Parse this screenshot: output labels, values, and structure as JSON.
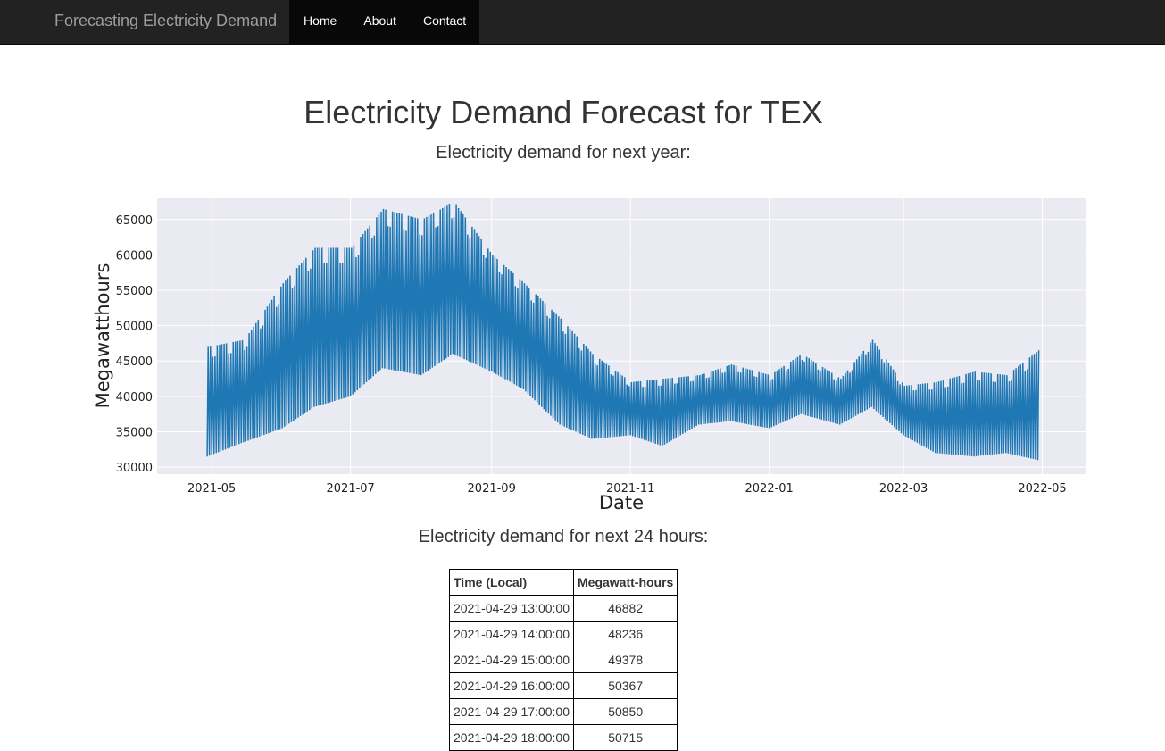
{
  "navbar": {
    "brand": "Forecasting Electricity Demand",
    "items": [
      {
        "label": "Home"
      },
      {
        "label": "About"
      },
      {
        "label": "Contact"
      }
    ]
  },
  "page": {
    "title": "Electricity Demand Forecast for TEX",
    "subtitle_year": "Electricity demand for next year:",
    "subtitle_day": "Electricity demand for next 24 hours:"
  },
  "chart_data": {
    "type": "line",
    "xlabel": "Date",
    "ylabel": "Megawatthours",
    "xlim": [
      "2021-04-07",
      "2022-05-20"
    ],
    "ylim": [
      29000,
      68000
    ],
    "x_ticks": [
      "2021-05",
      "2021-07",
      "2021-09",
      "2021-11",
      "2022-01",
      "2022-03",
      "2022-05"
    ],
    "y_ticks": [
      30000,
      35000,
      40000,
      45000,
      50000,
      55000,
      60000,
      65000
    ],
    "grid": true,
    "line_color": "#1f77b4",
    "background": "#eaeaf2",
    "series": [
      {
        "x_range": [
          "2021-04-29",
          "2022-04-29"
        ],
        "daily_peak": [
          [
            "2021-04-29",
            47000
          ],
          [
            "2021-05-15",
            48000
          ],
          [
            "2021-06-01",
            56000
          ],
          [
            "2021-06-15",
            61000
          ],
          [
            "2021-07-01",
            61000
          ],
          [
            "2021-07-15",
            66500
          ],
          [
            "2021-08-01",
            65000
          ],
          [
            "2021-08-15",
            67500
          ],
          [
            "2021-09-01",
            60000
          ],
          [
            "2021-09-15",
            56000
          ],
          [
            "2021-10-01",
            51000
          ],
          [
            "2021-10-15",
            46000
          ],
          [
            "2021-11-01",
            42000
          ],
          [
            "2021-11-15",
            42500
          ],
          [
            "2021-12-01",
            43000
          ],
          [
            "2021-12-15",
            44500
          ],
          [
            "2022-01-01",
            43000
          ],
          [
            "2022-01-15",
            46000
          ],
          [
            "2022-02-01",
            42500
          ],
          [
            "2022-02-15",
            48000
          ],
          [
            "2022-03-01",
            41500
          ],
          [
            "2022-03-15",
            42000
          ],
          [
            "2022-04-01",
            43500
          ],
          [
            "2022-04-15",
            43000
          ],
          [
            "2022-04-29",
            46500
          ]
        ],
        "daily_trough": [
          [
            "2021-04-29",
            31500
          ],
          [
            "2021-05-15",
            33500
          ],
          [
            "2021-06-01",
            35500
          ],
          [
            "2021-06-15",
            38500
          ],
          [
            "2021-07-01",
            40000
          ],
          [
            "2021-07-15",
            44000
          ],
          [
            "2021-08-01",
            43000
          ],
          [
            "2021-08-15",
            46000
          ],
          [
            "2021-09-01",
            43500
          ],
          [
            "2021-09-15",
            41000
          ],
          [
            "2021-10-01",
            36000
          ],
          [
            "2021-10-15",
            34000
          ],
          [
            "2021-11-01",
            34500
          ],
          [
            "2021-11-15",
            33000
          ],
          [
            "2021-12-01",
            36000
          ],
          [
            "2021-12-15",
            36500
          ],
          [
            "2022-01-01",
            35500
          ],
          [
            "2022-01-15",
            37500
          ],
          [
            "2022-02-01",
            36000
          ],
          [
            "2022-02-15",
            38500
          ],
          [
            "2022-03-01",
            34500
          ],
          [
            "2022-03-15",
            32000
          ],
          [
            "2022-04-01",
            31500
          ],
          [
            "2022-04-15",
            32000
          ],
          [
            "2022-04-29",
            31000
          ]
        ]
      }
    ]
  },
  "table": {
    "headers": [
      "Time (Local)",
      "Megawatt-hours"
    ],
    "rows": [
      [
        "2021-04-29 13:00:00",
        "46882"
      ],
      [
        "2021-04-29 14:00:00",
        "48236"
      ],
      [
        "2021-04-29 15:00:00",
        "49378"
      ],
      [
        "2021-04-29 16:00:00",
        "50367"
      ],
      [
        "2021-04-29 17:00:00",
        "50850"
      ],
      [
        "2021-04-29 18:00:00",
        "50715"
      ]
    ]
  }
}
